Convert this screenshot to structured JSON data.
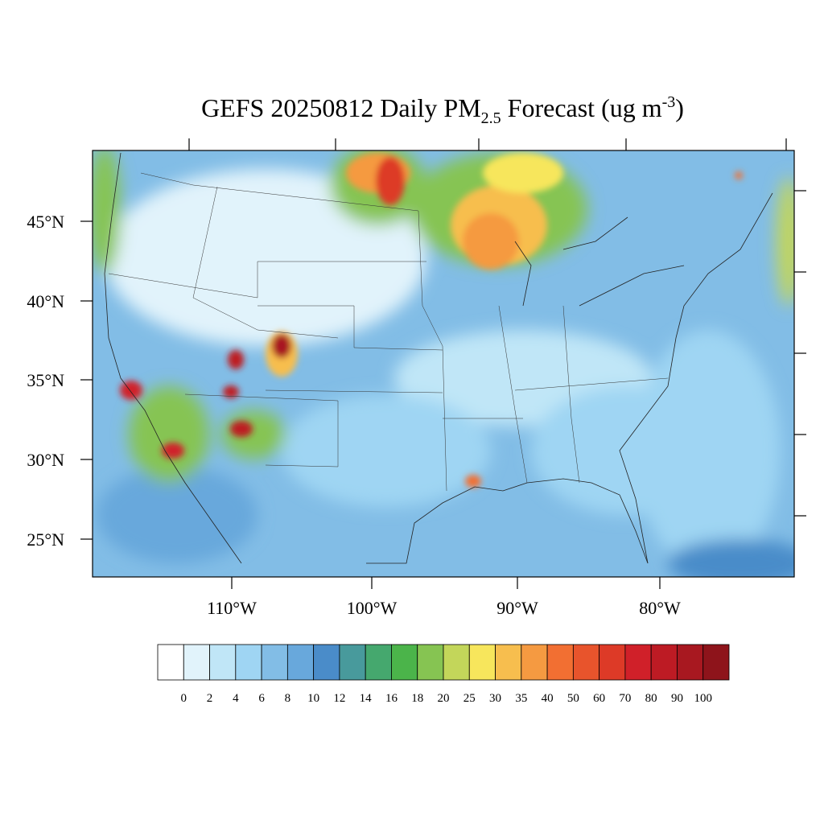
{
  "title": {
    "main": "GEFS 20250812 Daily PM",
    "subscript": "2.5",
    "after": " Forecast (ug m",
    "superscript": "-3",
    "close": ")"
  },
  "lat_labels": [
    "45°N",
    "40°N",
    "35°N",
    "30°N",
    "25°N"
  ],
  "lon_labels": [
    "110°W",
    "100°W",
    "90°W",
    "80°W"
  ],
  "colorbar": {
    "labels": [
      "0",
      "2",
      "4",
      "6",
      "8",
      "10",
      "12",
      "14",
      "16",
      "18",
      "20",
      "25",
      "30",
      "35",
      "40",
      "50",
      "60",
      "70",
      "80",
      "90",
      "100"
    ],
    "colors": [
      "#ffffff",
      "#e1f3fb",
      "#c0e6f7",
      "#9fd5f3",
      "#82bde6",
      "#68a8dc",
      "#4a8cc9",
      "#489a9c",
      "#45a86e",
      "#4bb44a",
      "#86c452",
      "#c3d65a",
      "#f7e65c",
      "#f7be4e",
      "#f59a41",
      "#f26f32",
      "#e8542c",
      "#dd3a27",
      "#d02029",
      "#bd1b24",
      "#a81820",
      "#8e141b"
    ]
  }
}
